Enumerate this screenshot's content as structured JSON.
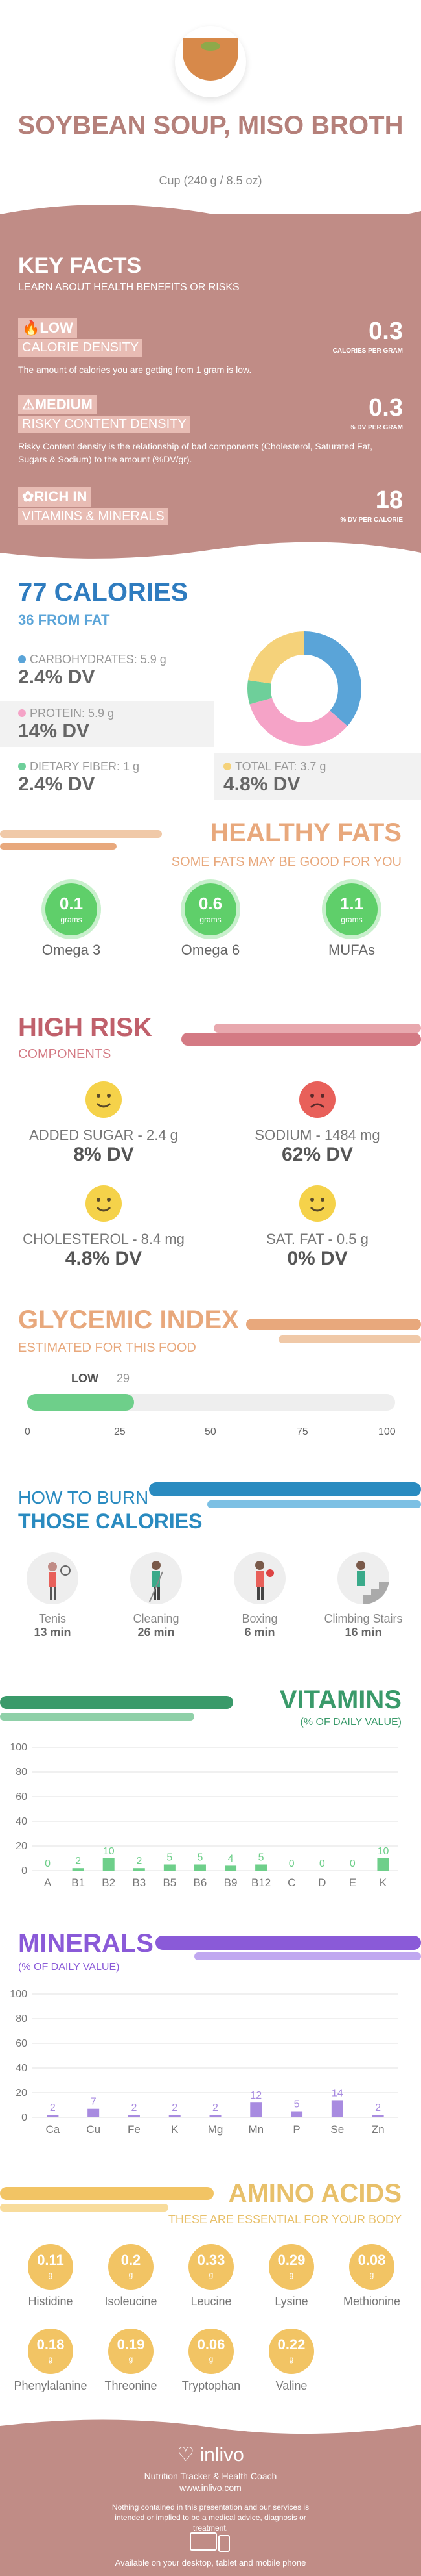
{
  "header": {
    "title": "SOYBEAN SOUP, MISO BROTH",
    "serving": "Cup (240 g / 8.5 oz)"
  },
  "key_facts": {
    "title": "KEY FACTS",
    "subtitle": "LEARN ABOUT HEALTH BENEFITS OR RISKS",
    "low": {
      "tag": "LOW",
      "label": "CALORIE DENSITY",
      "value": "0.3",
      "unit": "CALORIES PER GRAM",
      "desc": "The amount of calories you are getting from 1 gram is low."
    },
    "medium": {
      "tag": "MEDIUM",
      "label": "RISKY CONTENT DENSITY",
      "value": "0.3",
      "unit": "% DV PER GRAM",
      "desc": "Risky Content density is the relationship of bad components (Cholesterol, Saturated Fat, Sugars & Sodium) to the amount (%DV/gr)."
    },
    "rich": {
      "tag": "RICH  IN",
      "label": "VITAMINS & MINERALS",
      "value": "18",
      "unit": "% DV PER CALORIE"
    }
  },
  "calories": {
    "title": "77 CALORIES",
    "subtitle": "36 FROM FAT",
    "carbs": {
      "label": "CARBOHYDRATES: 5.9 g",
      "dv": "2.4% DV",
      "color": "#5aa4d8"
    },
    "protein": {
      "label": "PROTEIN: 5.9 g",
      "dv": "14% DV",
      "color": "#f5a3c7"
    },
    "fiber": {
      "label": "DIETARY FIBER: 1 g",
      "dv": "2.4% DV",
      "color": "#6ecf9a"
    },
    "fat": {
      "label": "TOTAL FAT: 3.7 g",
      "dv": "4.8% DV",
      "color": "#f5d27a"
    }
  },
  "healthy_fats": {
    "title": "HEALTHY FATS",
    "subtitle": "SOME FATS MAY BE GOOD FOR YOU",
    "items": [
      {
        "value": "0.1",
        "unit": "grams",
        "label": "Omega 3"
      },
      {
        "value": "0.6",
        "unit": "grams",
        "label": "Omega 6"
      },
      {
        "value": "1.1",
        "unit": "grams",
        "label": "MUFAs"
      }
    ]
  },
  "high_risk": {
    "title": "HIGH RISK",
    "subtitle": "COMPONENTS",
    "items": [
      {
        "label": "ADDED SUGAR - 2.4 g",
        "dv": "8% DV",
        "mood": "happy"
      },
      {
        "label": "SODIUM - 1484 mg",
        "dv": "62% DV",
        "mood": "sad"
      },
      {
        "label": "CHOLESTEROL - 8.4 mg",
        "dv": "4.8% DV",
        "mood": "happy"
      },
      {
        "label": "SAT. FAT - 0.5 g",
        "dv": "0% DV",
        "mood": "happy"
      }
    ]
  },
  "glycemic": {
    "title": "GLYCEMIC INDEX",
    "subtitle": "ESTIMATED FOR THIS FOOD",
    "level": "LOW",
    "value": "29",
    "ticks": [
      "0",
      "25",
      "50",
      "75",
      "100"
    ]
  },
  "burn": {
    "title1": "HOW TO BURN",
    "title2": "THOSE CALORIES",
    "items": [
      {
        "name": "Tenis",
        "time": "13 min"
      },
      {
        "name": "Cleaning",
        "time": "26 min"
      },
      {
        "name": "Boxing",
        "time": "6 min"
      },
      {
        "name": "Climbing Stairs",
        "time": "16 min"
      }
    ]
  },
  "vitamins": {
    "title": "VITAMINS",
    "subtitle": "(% OF DAILY VALUE)"
  },
  "minerals": {
    "title": "MINERALS",
    "subtitle": "(% OF DAILY VALUE)"
  },
  "chart_data": [
    {
      "type": "bar",
      "title": "VITAMINS",
      "categories": [
        "A",
        "B1",
        "B2",
        "B3",
        "B5",
        "B6",
        "B9",
        "B12",
        "C",
        "D",
        "E",
        "K"
      ],
      "values": [
        0,
        2,
        10,
        2,
        5,
        5,
        4,
        5,
        0,
        0,
        0,
        10
      ],
      "ylim": [
        0,
        100
      ],
      "yticks": [
        "0",
        "20",
        "40",
        "60",
        "80",
        "100"
      ],
      "color": "#6ecf8a"
    },
    {
      "type": "bar",
      "title": "MINERALS",
      "categories": [
        "Ca",
        "Cu",
        "Fe",
        "K",
        "Mg",
        "Mn",
        "P",
        "Se",
        "Zn"
      ],
      "values": [
        2,
        7,
        2,
        2,
        2,
        12,
        5,
        14,
        2
      ],
      "ylim": [
        0,
        100
      ],
      "yticks": [
        "0",
        "20",
        "40",
        "60",
        "80",
        "100"
      ],
      "color": "#a88be0"
    }
  ],
  "amino": {
    "title": "AMINO ACIDS",
    "subtitle": "THESE ARE ESSENTIAL FOR YOUR BODY",
    "items": [
      {
        "value": "0.11",
        "unit": "g",
        "label": "Histidine"
      },
      {
        "value": "0.2",
        "unit": "g",
        "label": "Isoleucine"
      },
      {
        "value": "0.33",
        "unit": "g",
        "label": "Leucine"
      },
      {
        "value": "0.29",
        "unit": "g",
        "label": "Lysine"
      },
      {
        "value": "0.08",
        "unit": "g",
        "label": "Methionine"
      },
      {
        "value": "0.18",
        "unit": "g",
        "label": "Phenylalanine"
      },
      {
        "value": "0.19",
        "unit": "g",
        "label": "Threonine"
      },
      {
        "value": "0.06",
        "unit": "g",
        "label": "Tryptophan"
      },
      {
        "value": "0.22",
        "unit": "g",
        "label": "Valine"
      }
    ]
  },
  "footer": {
    "brand": "inlivo",
    "tagline": "Nutrition Tracker & Health Coach",
    "url": "www.inlivo.com",
    "disclaimer": "Nothing contained in this presentation and our services is intended or implied to be a medical advice, diagnosis or treatment.",
    "available": "Available on your desktop, tablet and mobile phone"
  }
}
